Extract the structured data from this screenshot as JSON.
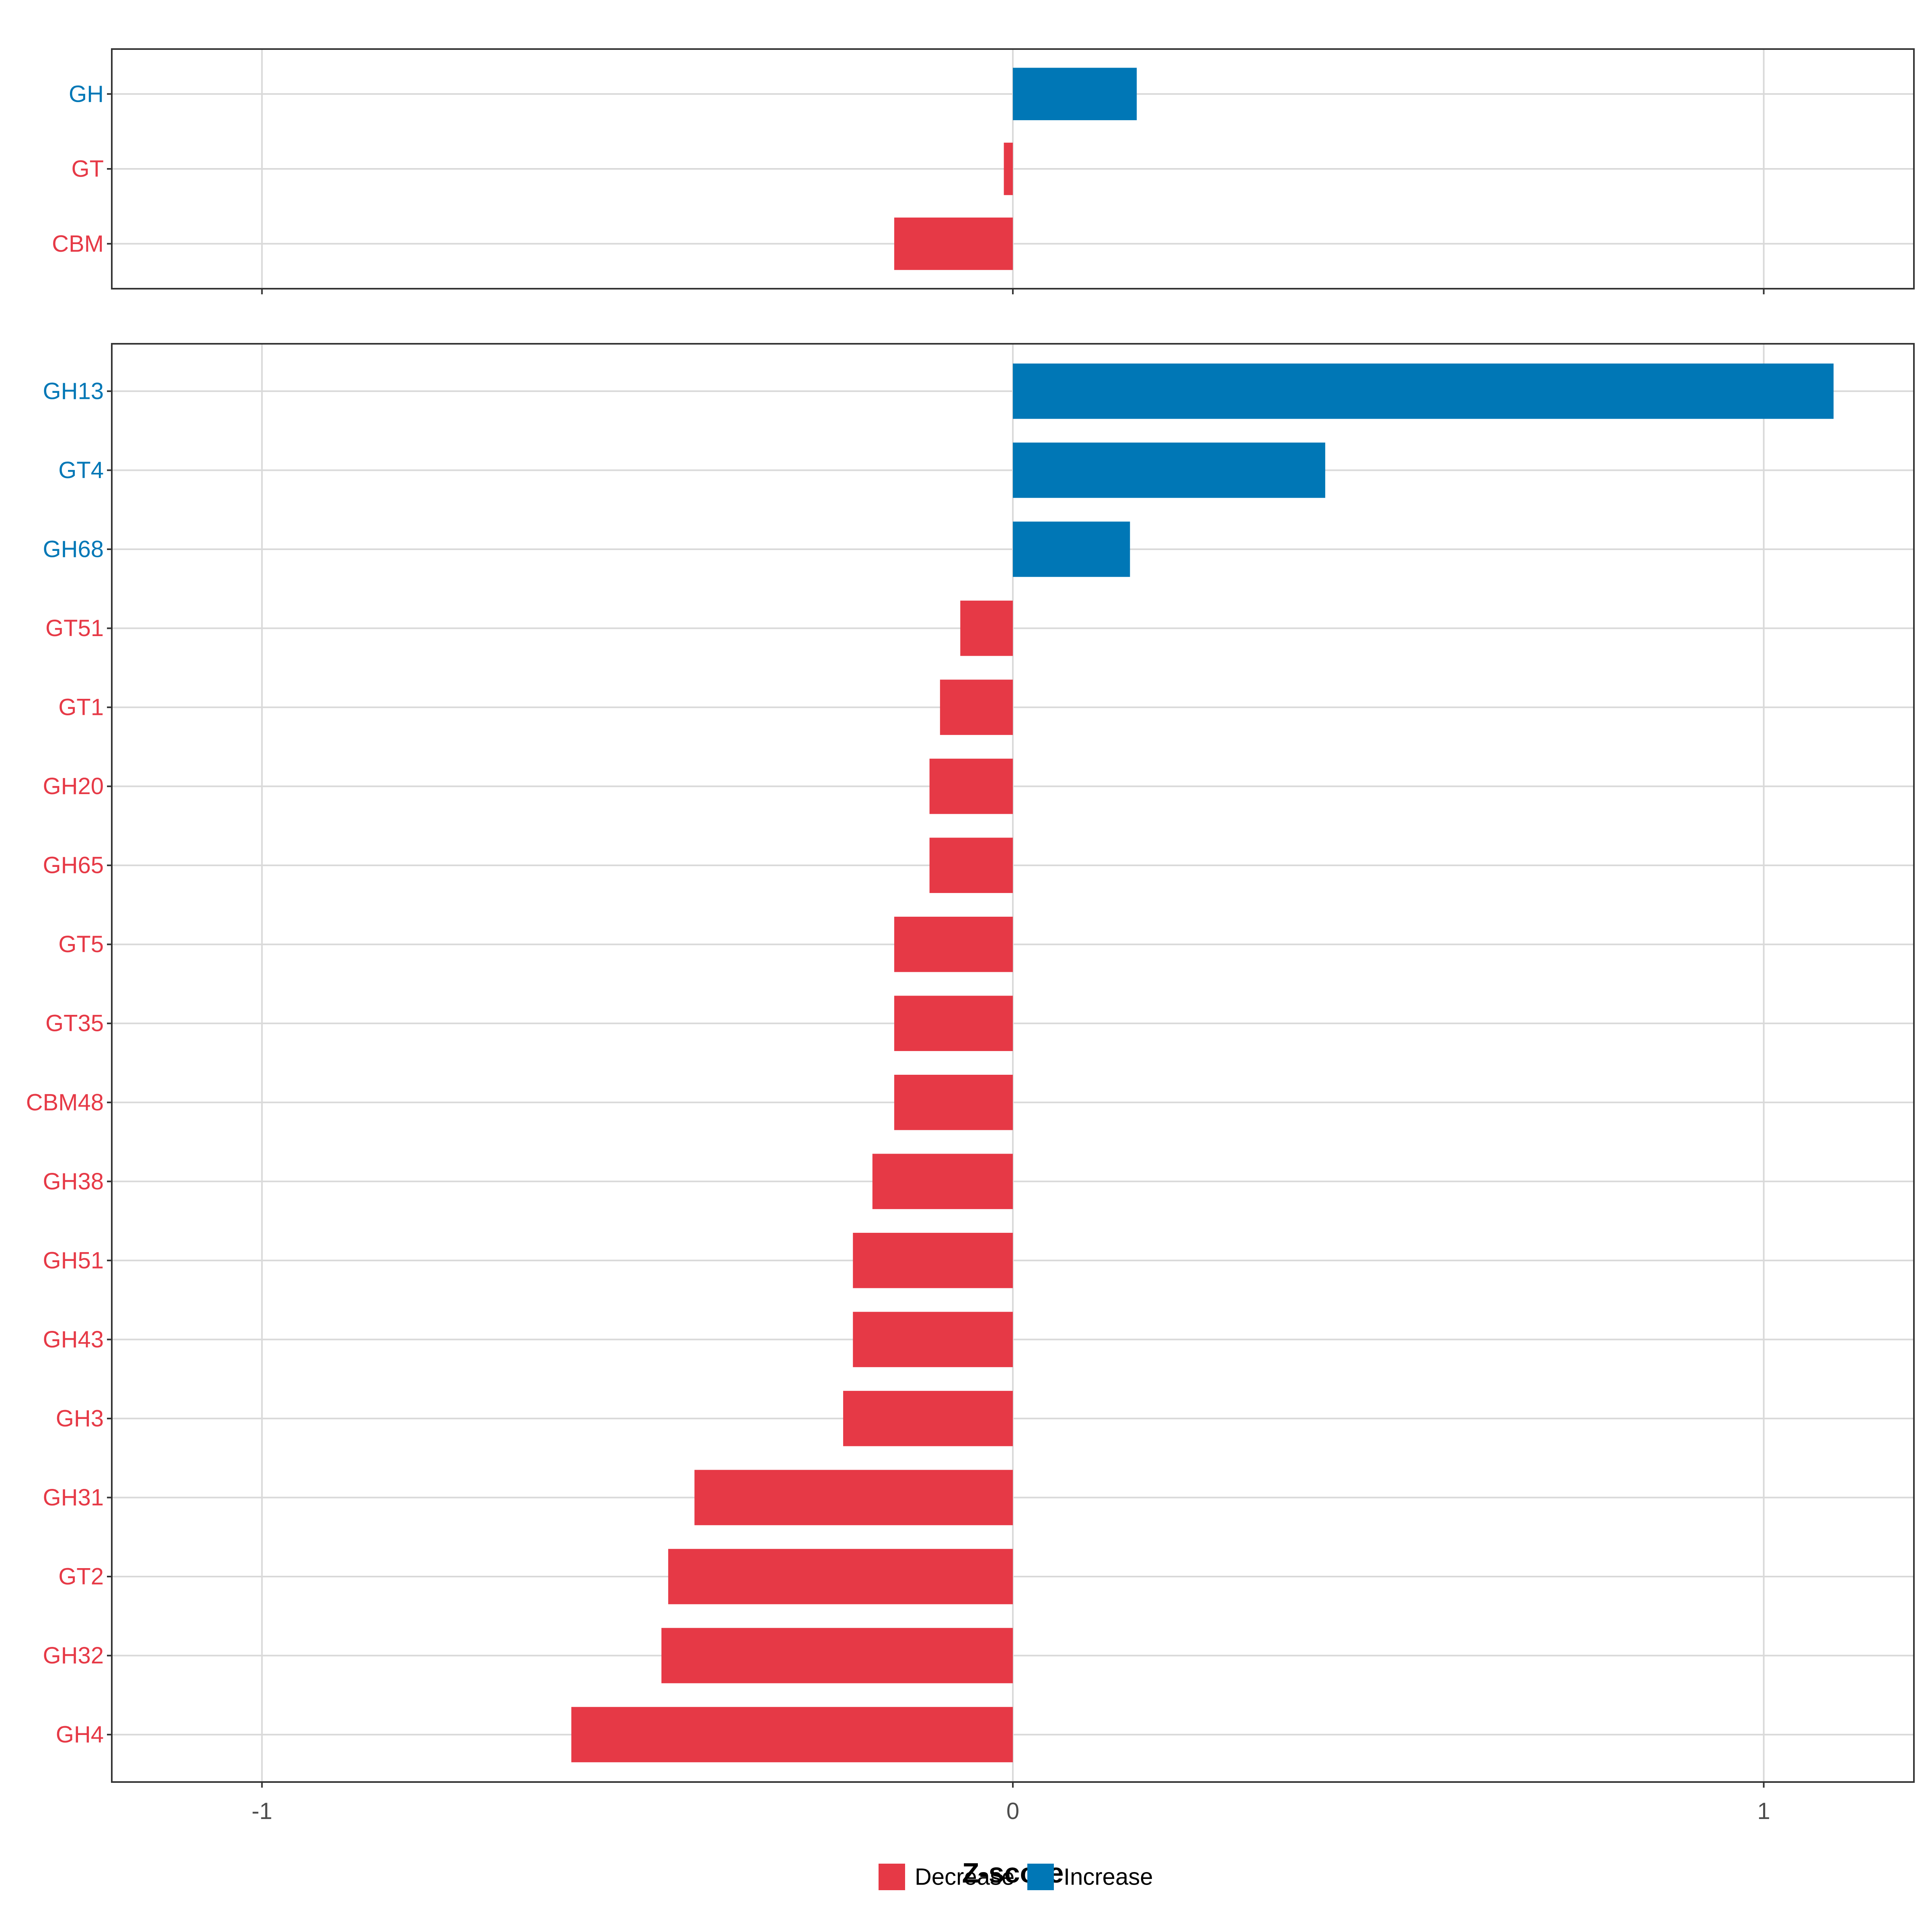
{
  "colors": {
    "decrease": "#E63946",
    "increase": "#0077B6",
    "grid": "#D9D9D9",
    "panel_border": "#333333",
    "tick_text": "#4D4D4D",
    "axis_title": "#000000"
  },
  "chart_data": [
    {
      "type": "bar",
      "orientation": "horizontal",
      "panel": "top",
      "categories": [
        "GH",
        "GT",
        "CBM"
      ],
      "values": [
        0.165,
        -0.012,
        -0.158
      ],
      "direction": [
        "Increase",
        "Decrease",
        "Decrease"
      ],
      "xlim": [
        -1.2,
        1.2
      ],
      "xticks": [
        -1,
        0,
        1
      ],
      "grid": true
    },
    {
      "type": "bar",
      "orientation": "horizontal",
      "panel": "bottom",
      "categories": [
        "GH13",
        "GT4",
        "GH68",
        "GT51",
        "GT1",
        "GH20",
        "GH65",
        "GT5",
        "GT35",
        "CBM48",
        "GH38",
        "GH51",
        "GH43",
        "GH3",
        "GH31",
        "GT2",
        "GH32",
        "GH4"
      ],
      "values": [
        1.093,
        0.416,
        0.156,
        -0.07,
        -0.097,
        -0.111,
        -0.111,
        -0.158,
        -0.158,
        -0.158,
        -0.187,
        -0.213,
        -0.213,
        -0.226,
        -0.424,
        -0.459,
        -0.468,
        -0.588
      ],
      "direction": [
        "Increase",
        "Increase",
        "Increase",
        "Decrease",
        "Decrease",
        "Decrease",
        "Decrease",
        "Decrease",
        "Decrease",
        "Decrease",
        "Decrease",
        "Decrease",
        "Decrease",
        "Decrease",
        "Decrease",
        "Decrease",
        "Decrease",
        "Decrease"
      ],
      "xlim": [
        -1.2,
        1.2
      ],
      "xticks": [
        -1,
        0,
        1
      ],
      "xtick_labels": [
        "-1",
        "0",
        "1"
      ],
      "xlabel": "Z-score",
      "grid": true
    }
  ],
  "legend": {
    "placement": "bottom",
    "items": [
      {
        "label": "Decrease",
        "key": "decrease"
      },
      {
        "label": "Increase",
        "key": "increase"
      }
    ]
  }
}
